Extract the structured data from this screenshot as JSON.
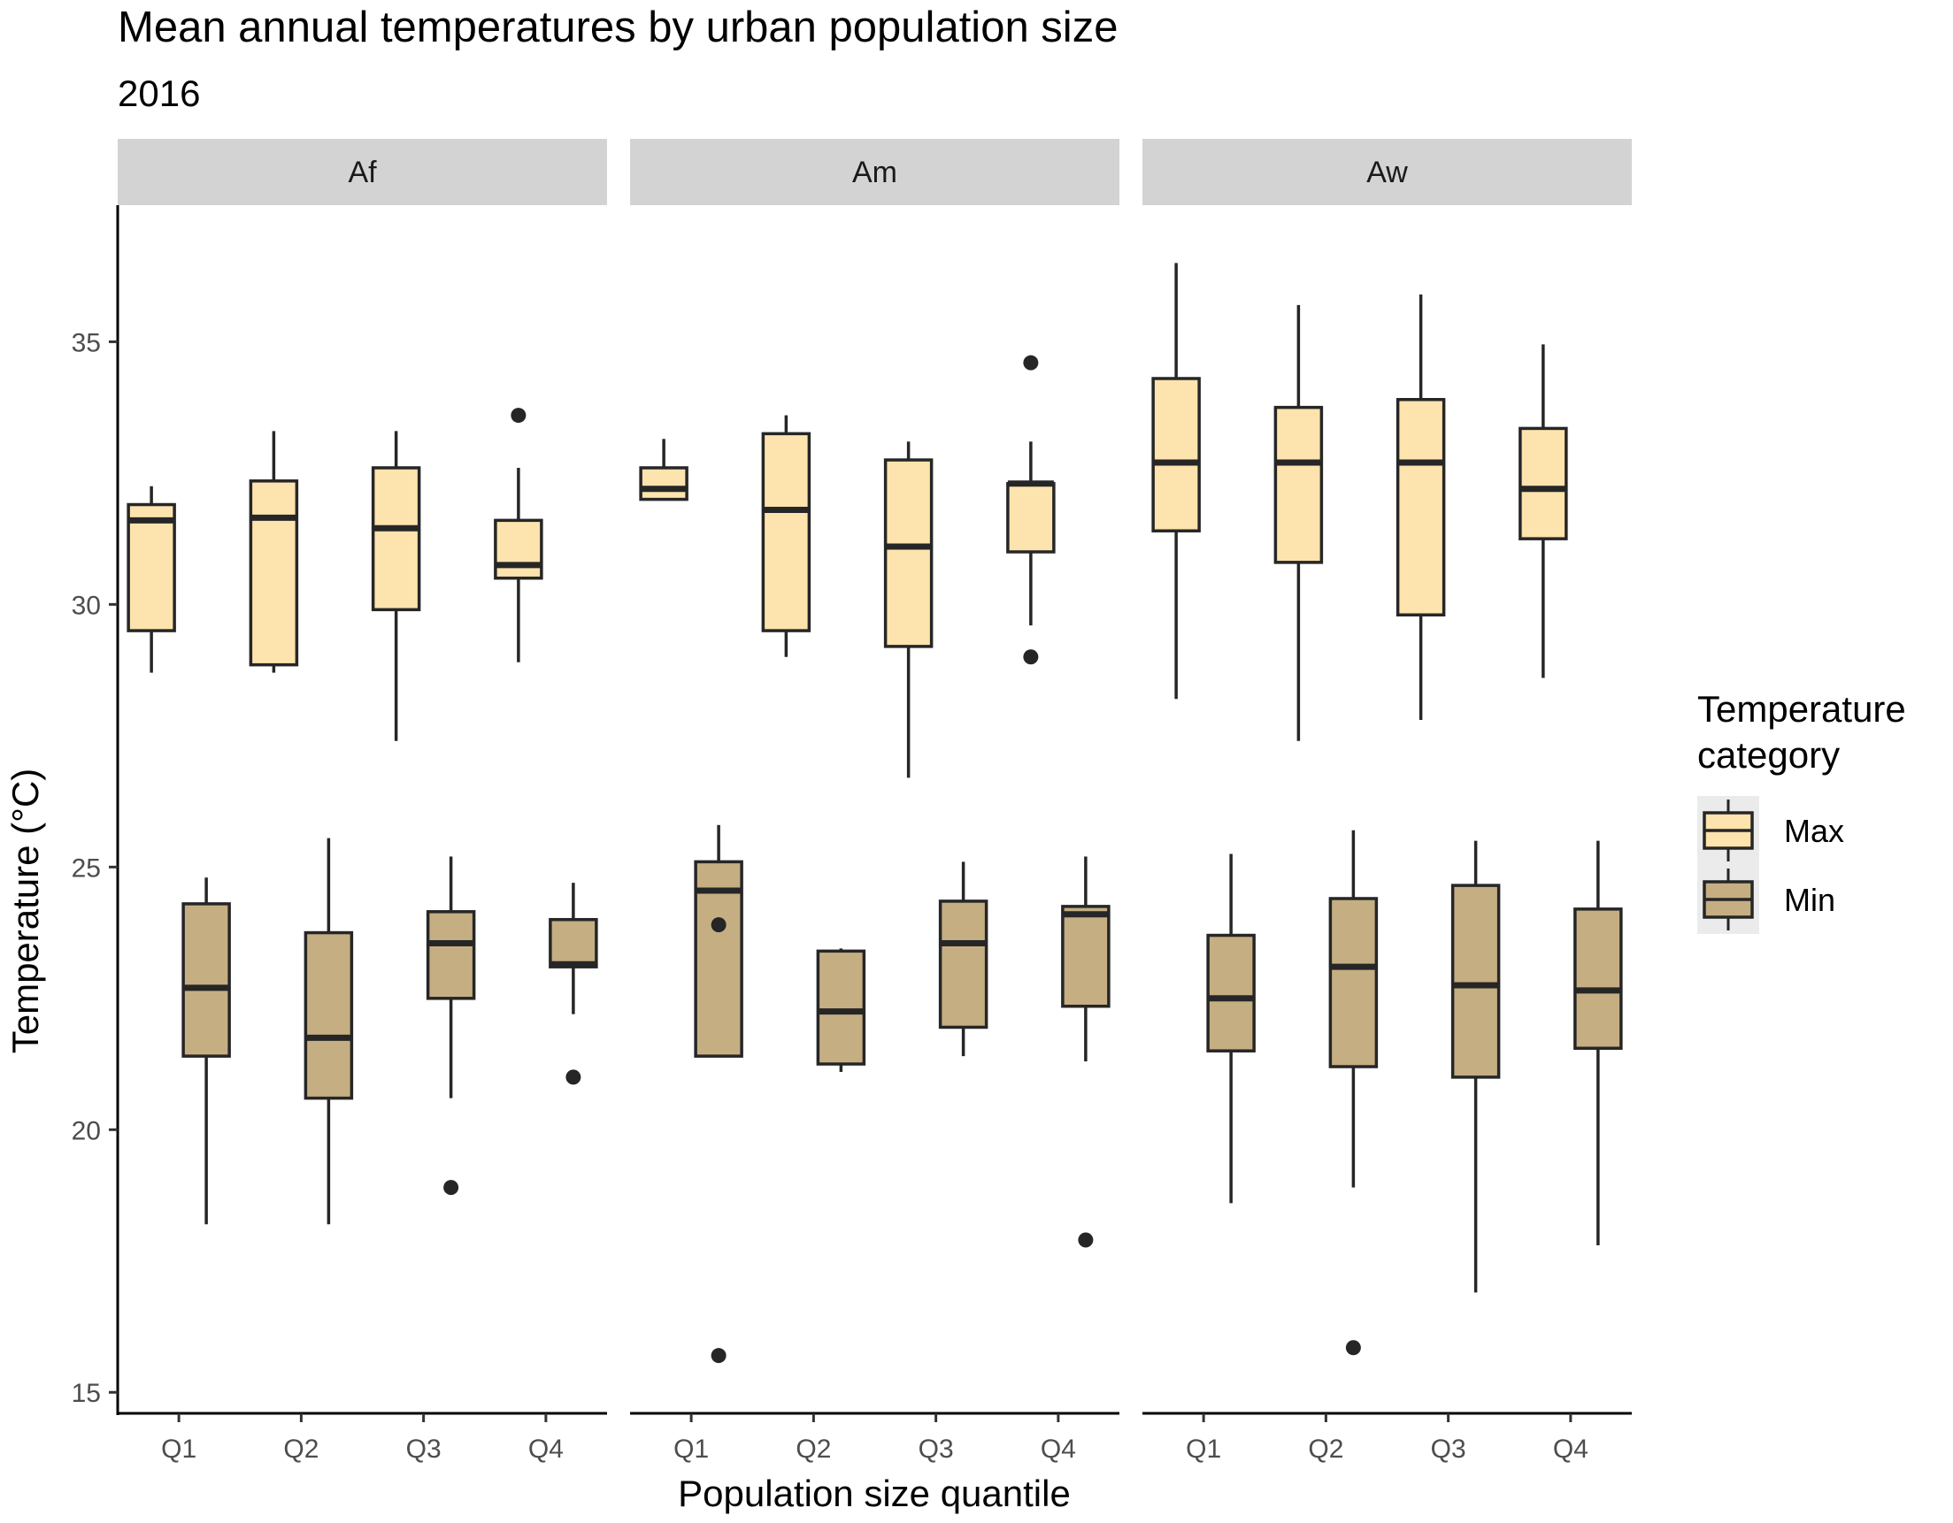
{
  "chart_data": {
    "type": "boxplot",
    "title": "Mean annual temperatures by urban population size",
    "subtitle": "2016",
    "xlabel": "Population size quantile",
    "ylabel": "Temperature (°C)",
    "ylim": [
      14.6,
      37.6
    ],
    "yticks": [
      15,
      20,
      25,
      30,
      35
    ],
    "categories": [
      "Q1",
      "Q2",
      "Q3",
      "Q4"
    ],
    "legend": {
      "title_lines": [
        "Temperature",
        "category"
      ],
      "position": "right",
      "entries": [
        {
          "name": "Max",
          "color": "#FDE3AD"
        },
        {
          "name": "Min",
          "color": "#C5AE82"
        }
      ]
    },
    "facets": [
      {
        "label": "Af",
        "series": [
          {
            "name": "Max",
            "boxes": [
              {
                "cat": "Q1",
                "wlow": 28.7,
                "q1": 29.5,
                "median": 31.6,
                "q3": 31.9,
                "whigh": 32.25,
                "outliers": []
              },
              {
                "cat": "Q2",
                "wlow": 28.7,
                "q1": 28.85,
                "median": 31.65,
                "q3": 32.35,
                "whigh": 33.3,
                "outliers": []
              },
              {
                "cat": "Q3",
                "wlow": 27.4,
                "q1": 29.9,
                "median": 31.45,
                "q3": 32.6,
                "whigh": 33.3,
                "outliers": []
              },
              {
                "cat": "Q4",
                "wlow": 28.9,
                "q1": 30.5,
                "median": 30.75,
                "q3": 31.6,
                "whigh": 32.6,
                "outliers": [
                  33.6
                ]
              }
            ]
          },
          {
            "name": "Min",
            "boxes": [
              {
                "cat": "Q1",
                "wlow": 18.2,
                "q1": 21.4,
                "median": 22.7,
                "q3": 24.3,
                "whigh": 24.8,
                "outliers": []
              },
              {
                "cat": "Q2",
                "wlow": 18.2,
                "q1": 20.6,
                "median": 21.75,
                "q3": 23.75,
                "whigh": 25.55,
                "outliers": []
              },
              {
                "cat": "Q3",
                "wlow": 20.6,
                "q1": 22.5,
                "median": 23.55,
                "q3": 24.15,
                "whigh": 25.2,
                "outliers": [
                  18.9
                ]
              },
              {
                "cat": "Q4",
                "wlow": 22.2,
                "q1": 23.1,
                "median": 23.15,
                "q3": 24.0,
                "whigh": 24.7,
                "outliers": [
                  21.0
                ]
              }
            ]
          }
        ]
      },
      {
        "label": "Am",
        "series": [
          {
            "name": "Max",
            "boxes": [
              {
                "cat": "Q1",
                "wlow": 32.0,
                "q1": 32.0,
                "median": 32.2,
                "q3": 32.6,
                "whigh": 33.15,
                "outliers": []
              },
              {
                "cat": "Q2",
                "wlow": 29.0,
                "q1": 29.5,
                "median": 31.8,
                "q3": 33.25,
                "whigh": 33.6,
                "outliers": []
              },
              {
                "cat": "Q3",
                "wlow": 26.7,
                "q1": 29.2,
                "median": 31.1,
                "q3": 32.75,
                "whigh": 33.1,
                "outliers": []
              },
              {
                "cat": "Q4",
                "wlow": 29.6,
                "q1": 31.0,
                "median": 32.3,
                "q3": 32.3,
                "whigh": 33.1,
                "outliers": [
                  34.6,
                  29.0
                ]
              }
            ]
          },
          {
            "name": "Min",
            "boxes": [
              {
                "cat": "Q1",
                "wlow": 21.4,
                "q1": 21.4,
                "median": 24.55,
                "q3": 25.1,
                "whigh": 25.8,
                "outliers": [
                  23.9,
                  15.7
                ]
              },
              {
                "cat": "Q2",
                "wlow": 21.1,
                "q1": 21.25,
                "median": 22.25,
                "q3": 23.4,
                "whigh": 23.45,
                "outliers": []
              },
              {
                "cat": "Q3",
                "wlow": 21.4,
                "q1": 21.95,
                "median": 23.55,
                "q3": 24.35,
                "whigh": 25.1,
                "outliers": []
              },
              {
                "cat": "Q4",
                "wlow": 21.3,
                "q1": 22.35,
                "median": 24.1,
                "q3": 24.25,
                "whigh": 25.2,
                "outliers": [
                  17.9
                ]
              }
            ]
          }
        ]
      },
      {
        "label": "Aw",
        "series": [
          {
            "name": "Max",
            "boxes": [
              {
                "cat": "Q1",
                "wlow": 28.2,
                "q1": 31.4,
                "median": 32.7,
                "q3": 34.3,
                "whigh": 36.5,
                "outliers": []
              },
              {
                "cat": "Q2",
                "wlow": 27.4,
                "q1": 30.8,
                "median": 32.7,
                "q3": 33.75,
                "whigh": 35.7,
                "outliers": []
              },
              {
                "cat": "Q3",
                "wlow": 27.8,
                "q1": 29.8,
                "median": 32.7,
                "q3": 33.9,
                "whigh": 35.9,
                "outliers": []
              },
              {
                "cat": "Q4",
                "wlow": 28.6,
                "q1": 31.25,
                "median": 32.2,
                "q3": 33.35,
                "whigh": 34.95,
                "outliers": []
              }
            ]
          },
          {
            "name": "Min",
            "boxes": [
              {
                "cat": "Q1",
                "wlow": 18.6,
                "q1": 21.5,
                "median": 22.5,
                "q3": 23.7,
                "whigh": 25.25,
                "outliers": []
              },
              {
                "cat": "Q2",
                "wlow": 18.9,
                "q1": 21.2,
                "median": 23.1,
                "q3": 24.4,
                "whigh": 25.7,
                "outliers": [
                  15.85
                ]
              },
              {
                "cat": "Q3",
                "wlow": 16.9,
                "q1": 21.0,
                "median": 22.75,
                "q3": 24.65,
                "whigh": 25.5,
                "outliers": []
              },
              {
                "cat": "Q4",
                "wlow": 17.8,
                "q1": 21.55,
                "median": 22.65,
                "q3": 24.2,
                "whigh": 25.5,
                "outliers": []
              }
            ]
          }
        ]
      }
    ]
  }
}
